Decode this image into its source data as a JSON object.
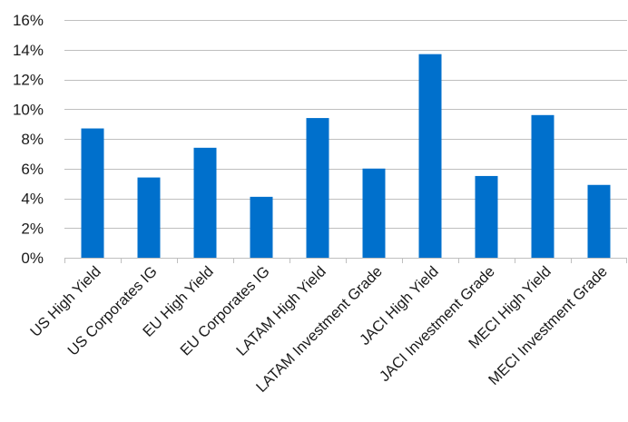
{
  "chart_data": {
    "type": "bar",
    "title": "",
    "xlabel": "",
    "ylabel": "",
    "categories": [
      "US High Yield",
      "US Corporates IG",
      "EU High Yield",
      "EU Corporates IG",
      "LATAM High Yield",
      "LATAM Investment Grade",
      "JACI High Yield",
      "JACI Investment Grade",
      "MECI High Yield",
      "MECI Investment Grade"
    ],
    "values": [
      8.7,
      5.4,
      7.4,
      4.1,
      9.4,
      6.0,
      13.7,
      5.5,
      9.6,
      4.9
    ],
    "ylim": [
      0,
      16
    ],
    "y_ticks": [
      0,
      2,
      4,
      6,
      8,
      10,
      12,
      14,
      16
    ],
    "y_tick_labels": [
      "0%",
      "2%",
      "4%",
      "6%",
      "8%",
      "10%",
      "12%",
      "14%",
      "16%"
    ],
    "grid": true,
    "legend": "none",
    "bar_color": "#0070cc"
  }
}
